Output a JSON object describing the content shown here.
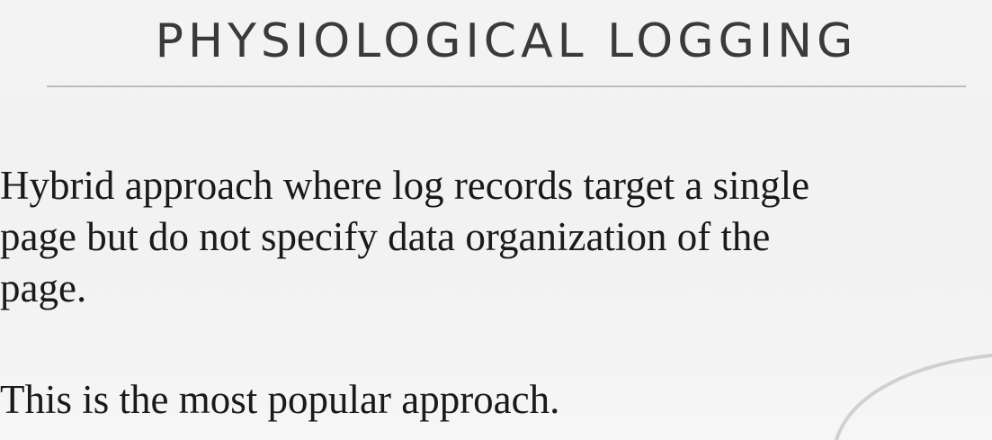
{
  "slide": {
    "title": "PHYSIOLOGICAL LOGGING",
    "paragraph_1_lines": [
      "Hybrid approach where log records target a single",
      "page but do not specify data organization of the",
      "page."
    ],
    "paragraph_2": "This is the most popular approach."
  },
  "colors": {
    "background": "#f3f3f3",
    "title": "#3a3a3a",
    "rule": "#bdbdbd",
    "body_text": "#1a1a1a",
    "decoration": "#d0d0d0"
  }
}
